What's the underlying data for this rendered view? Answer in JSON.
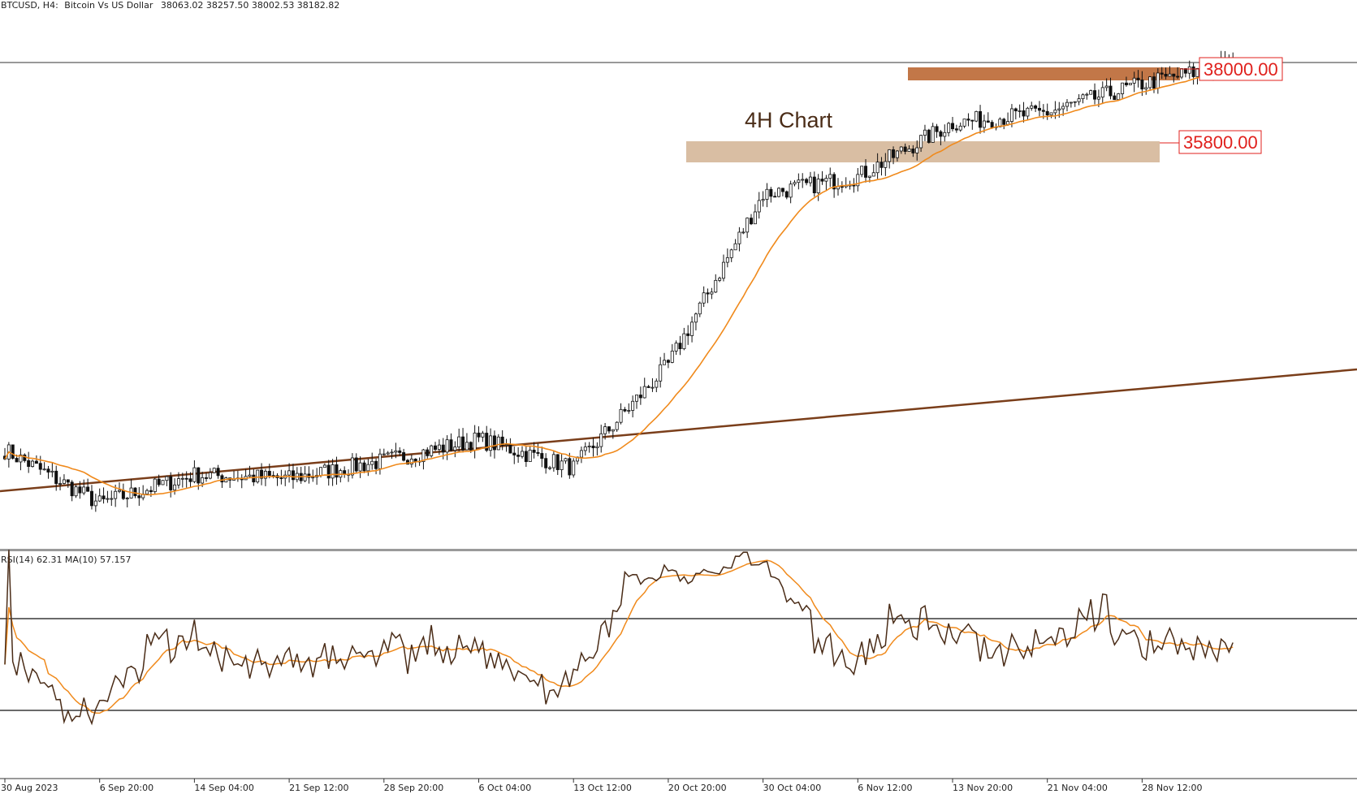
{
  "header": {
    "symbol": "BTCUSD, H4:",
    "description": "Bitcoin Vs US Dollar",
    "ohlc": "38063.02 38257.50 38002.53 38182.82"
  },
  "chart_data": {
    "type": "candlestick",
    "symbol": "BTCUSD",
    "timeframe": "H4",
    "annotation": "4H Chart",
    "x_tick_labels": [
      "30 Aug 2023",
      "6 Sep 20:00",
      "14 Sep 04:00",
      "21 Sep 12:00",
      "28 Sep 20:00",
      "6 Oct 04:00",
      "13 Oct 12:00",
      "20 Oct 20:00",
      "30 Oct 04:00",
      "6 Nov 12:00",
      "13 Nov 20:00",
      "21 Nov 04:00",
      "28 Nov 12:00"
    ],
    "price_anchors": [
      {
        "label": "30 Aug 2023",
        "close": 27300
      },
      {
        "label": "6 Sep 20:00",
        "close": 25800
      },
      {
        "label": "14 Sep 04:00",
        "close": 26600
      },
      {
        "label": "21 Sep 12:00",
        "close": 26500
      },
      {
        "label": "28 Sep 20:00",
        "close": 27000
      },
      {
        "label": "6 Oct 04:00",
        "close": 27600
      },
      {
        "label": "13 Oct 12:00",
        "close": 26800
      },
      {
        "label": "20 Oct 20:00",
        "close": 29700
      },
      {
        "label": "30 Oct 04:00",
        "close": 34500
      },
      {
        "label": "6 Nov 12:00",
        "close": 35000
      },
      {
        "label": "13 Nov 20:00",
        "close": 36500
      },
      {
        "label": "21 Nov 04:00",
        "close": 36800
      },
      {
        "label": "28 Nov 12:00",
        "close": 37600
      }
    ],
    "last_close": 38182.82,
    "levels": [
      {
        "label": "38000.00",
        "price": 38000,
        "color": "#c27748"
      },
      {
        "label": "35800.00",
        "price": 35800,
        "color": "#d9bea3"
      }
    ],
    "trendline": {
      "color": "#7a3e1a"
    },
    "moving_average": {
      "color": "#f08a1c"
    },
    "rsi": {
      "label": "RSI(14) 62.31 MA(10) 57.157",
      "period": 14,
      "value": 62.31,
      "ma_period": 10,
      "ma_value": 57.157,
      "upper_level": 70,
      "lower_level": 30,
      "line_color": "#4a2c17",
      "ma_color": "#f08a1c"
    }
  }
}
